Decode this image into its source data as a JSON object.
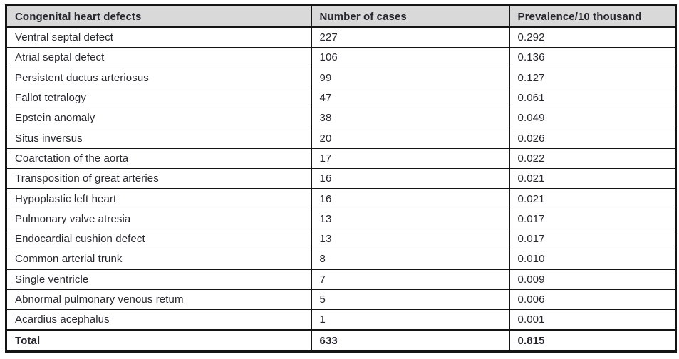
{
  "colors": {
    "header_bg": "#d9d9d9",
    "border": "#141414",
    "text": "#26262e"
  },
  "table": {
    "columns": [
      "Congenital heart defects",
      "Number of cases",
      "Prevalence/10 thousand"
    ],
    "rows": [
      [
        "Ventral septal defect",
        "227",
        "0.292"
      ],
      [
        "Atrial septal defect",
        "106",
        "0.136"
      ],
      [
        "Persistent ductus arteriosus",
        "99",
        "0.127"
      ],
      [
        "Fallot tetralogy",
        "47",
        "0.061"
      ],
      [
        "Epstein anomaly",
        "38",
        "0.049"
      ],
      [
        "Situs inversus",
        "20",
        "0.026"
      ],
      [
        "Coarctation of the aorta",
        "17",
        "0.022"
      ],
      [
        "Transposition of great arteries",
        "16",
        "0.021"
      ],
      [
        "Hypoplastic left heart",
        "16",
        "0.021"
      ],
      [
        "Pulmonary valve atresia",
        "13",
        "0.017"
      ],
      [
        "Endocardial cushion defect",
        "13",
        "0.017"
      ],
      [
        "Common arterial trunk",
        "8",
        "0.010"
      ],
      [
        "Single ventricle",
        "7",
        "0.009"
      ],
      [
        "Abnormal pulmonary venous retum",
        "5",
        "0.006"
      ],
      [
        "Acardius acephalus",
        "1",
        "0.001"
      ]
    ],
    "total_row": [
      "Total",
      "633",
      "0.815"
    ]
  },
  "chart_data": {
    "type": "table",
    "title": "Congenital heart defects",
    "categories": [
      "Ventral septal defect",
      "Atrial septal defect",
      "Persistent ductus arteriosus",
      "Fallot tetralogy",
      "Epstein anomaly",
      "Situs inversus",
      "Coarctation of the aorta",
      "Transposition of great arteries",
      "Hypoplastic left heart",
      "Pulmonary valve atresia",
      "Endocardial cushion defect",
      "Common arterial trunk",
      "Single ventricle",
      "Abnormal pulmonary venous retum",
      "Acardius acephalus"
    ],
    "series": [
      {
        "name": "Number of cases",
        "values": [
          227,
          106,
          99,
          47,
          38,
          20,
          17,
          16,
          16,
          13,
          13,
          8,
          7,
          5,
          1
        ]
      },
      {
        "name": "Prevalence/10 thousand",
        "values": [
          0.292,
          0.136,
          0.127,
          0.061,
          0.049,
          0.026,
          0.022,
          0.021,
          0.021,
          0.017,
          0.017,
          0.01,
          0.009,
          0.006,
          0.001
        ]
      }
    ],
    "totals": {
      "Number of cases": 633,
      "Prevalence/10 thousand": 0.815
    }
  }
}
